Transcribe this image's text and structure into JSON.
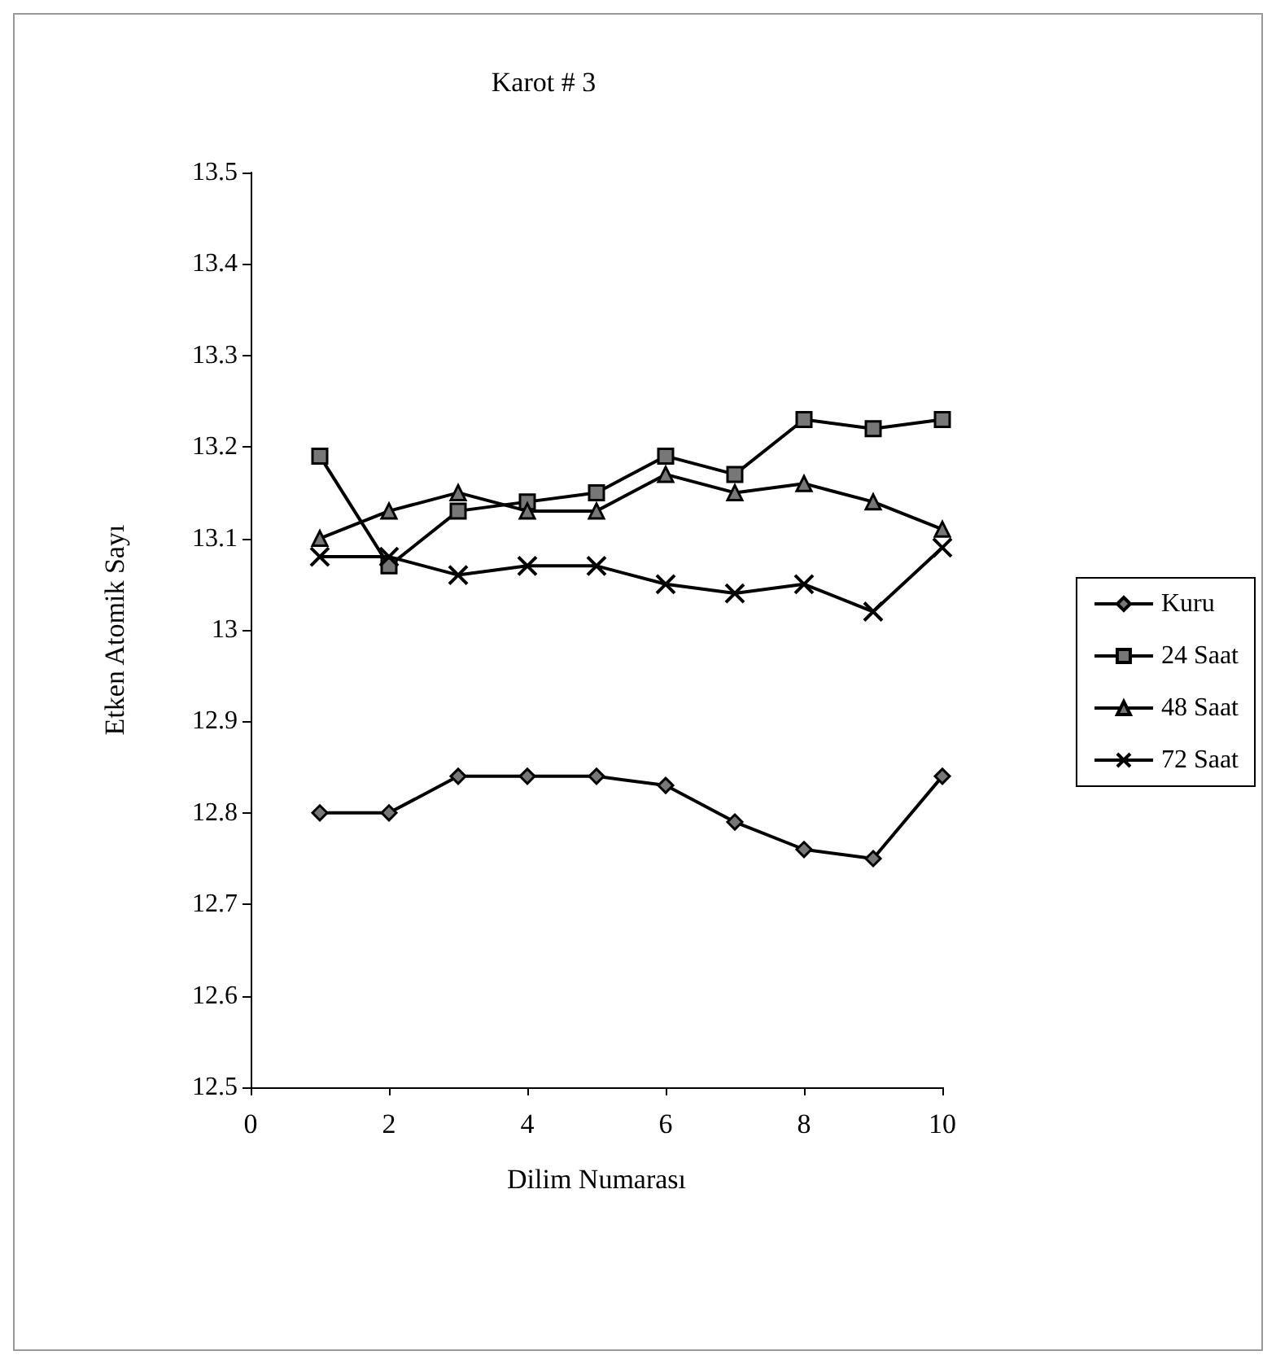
{
  "chart_data": {
    "type": "line",
    "title": "Karot # 3",
    "xlabel": "Dilim Numarası",
    "ylabel": "Etken Atomik Sayı",
    "x": [
      1,
      2,
      3,
      4,
      5,
      6,
      7,
      8,
      9,
      10
    ],
    "xlim": [
      0,
      10
    ],
    "xticks": [
      0,
      2,
      4,
      6,
      8,
      10
    ],
    "ylim": [
      12.5,
      13.5
    ],
    "yticks": [
      12.5,
      12.6,
      12.7,
      12.8,
      12.9,
      13,
      13.1,
      13.2,
      13.3,
      13.4,
      13.5
    ],
    "grid": false,
    "legend": "right",
    "line_style": "solid",
    "series": [
      {
        "name": "Kuru",
        "color": "#000000",
        "marker": "diamond",
        "values": [
          12.8,
          12.8,
          12.84,
          12.84,
          12.84,
          12.83,
          12.79,
          12.76,
          12.75,
          12.84
        ]
      },
      {
        "name": "24 Saat",
        "color": "#000000",
        "marker": "square",
        "values": [
          13.19,
          13.07,
          13.13,
          13.14,
          13.15,
          13.19,
          13.17,
          13.23,
          13.22,
          13.23
        ]
      },
      {
        "name": "48 Saat",
        "color": "#000000",
        "marker": "triangle",
        "values": [
          13.1,
          13.13,
          13.15,
          13.13,
          13.13,
          13.17,
          13.15,
          13.16,
          13.14,
          13.11
        ]
      },
      {
        "name": "72 Saat",
        "color": "#000000",
        "marker": "cross",
        "values": [
          13.08,
          13.08,
          13.06,
          13.07,
          13.07,
          13.05,
          13.04,
          13.05,
          13.02,
          13.09
        ]
      }
    ]
  }
}
